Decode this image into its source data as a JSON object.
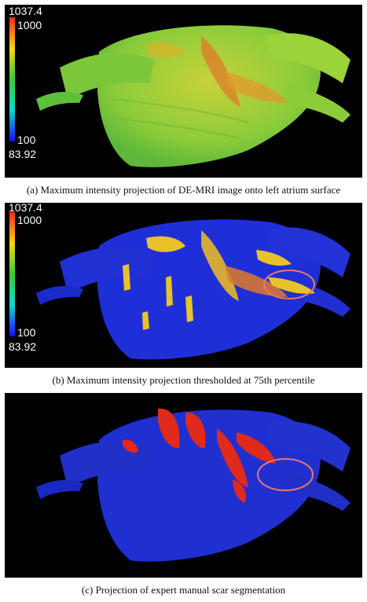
{
  "figure": {
    "panels": [
      {
        "id": "a",
        "caption": "(a) Maximum intensity projection of DE-MRI image onto left atrium surface",
        "colorbar": {
          "max_label": "1037.4",
          "upper_tick": "1000",
          "lower_tick": "100",
          "min_label": "83.92"
        },
        "surface_color": "#9bd23a",
        "highlight_color": "#e07a2a"
      },
      {
        "id": "b",
        "caption": "(b) Maximum intensity projection thresholded at 75th percentile",
        "colorbar": {
          "max_label": "1037.4",
          "upper_tick": "1000",
          "lower_tick": "100",
          "min_label": "83.92"
        },
        "surface_color": "#1f2fd8",
        "highlight_color": "#e8c22a",
        "annotation": "ellipse-marker"
      },
      {
        "id": "c",
        "caption": "(c) Projection of expert manual scar segmentation",
        "surface_color": "#1f2fd0",
        "highlight_color": "#e02a1c",
        "annotation": "ellipse-marker"
      }
    ],
    "colormap": [
      "#ff2a10",
      "#ffd21a",
      "#2ed12a",
      "#18d2d2",
      "#1010ff"
    ],
    "annotation_color": "#e9776f"
  }
}
